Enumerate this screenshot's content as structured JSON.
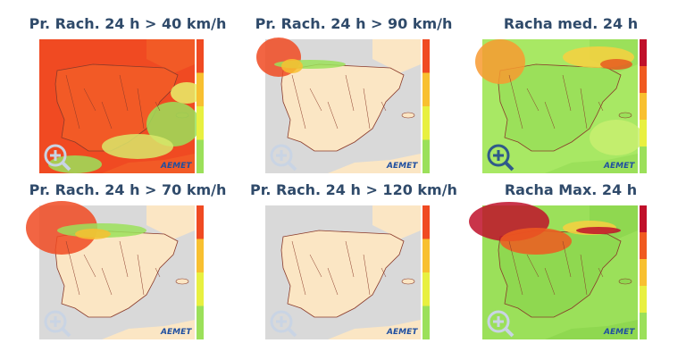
{
  "panels": [
    {
      "title": "Pr. Rach. 24 h  > 40 km/h"
    },
    {
      "title": "Pr. Rach. 24 h  > 90 km/h"
    },
    {
      "title": "Racha med. 24 h"
    },
    {
      "title": "Pr. Rach. 24 h  > 70 km/h"
    },
    {
      "title": "Pr. Rach. 24 h  > 120 km/h"
    },
    {
      "title": "Racha Max. 24 h"
    }
  ],
  "logo": "AEMET"
}
